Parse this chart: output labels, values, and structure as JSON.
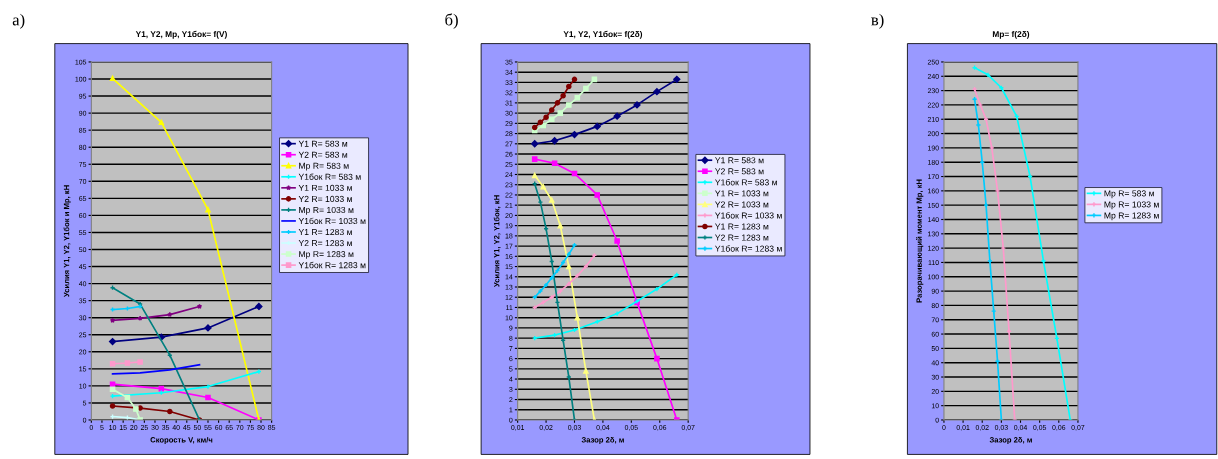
{
  "chart_data": [
    {
      "type": "line",
      "title": "Y1, Y2, Mр, Y1бок= f(V)",
      "xlabel": "Скорость V, км/ч",
      "ylabel": "Усилия Y1, Y2, Y1бок и Mр, кН",
      "annotations": [
        "а)"
      ],
      "xlim": [
        0,
        85
      ],
      "xticks": [
        0,
        5,
        10,
        15,
        20,
        25,
        30,
        35,
        40,
        45,
        50,
        55,
        60,
        65,
        70,
        75,
        80,
        85
      ],
      "ylim": [
        0,
        105
      ],
      "yticks": [
        0,
        5,
        10,
        15,
        20,
        25,
        30,
        35,
        40,
        45,
        50,
        55,
        60,
        65,
        70,
        75,
        80,
        85,
        90,
        95,
        100,
        105
      ],
      "grid": "y",
      "legend": "right",
      "series": [
        {
          "name": "Y1 R= 583 м",
          "color": "#000080",
          "marker": "diamond",
          "x": [
            10,
            33,
            55,
            79
          ],
          "values": [
            23,
            24.3,
            27,
            33.3
          ]
        },
        {
          "name": "Y2 R= 583 м",
          "color": "#ff00ff",
          "marker": "square",
          "x": [
            10,
            33,
            55,
            79
          ],
          "values": [
            10.5,
            9.2,
            6.6,
            0
          ]
        },
        {
          "name": "Mр R= 583 м",
          "color": "#ffff00",
          "marker": "triangle",
          "x": [
            10,
            33,
            55,
            79
          ],
          "values": [
            100.2,
            87.3,
            61.7,
            0
          ]
        },
        {
          "name": "Y1бок R= 583 м",
          "color": "#00ffff",
          "marker": "cross",
          "x": [
            10,
            33,
            55,
            79
          ],
          "values": [
            7,
            8,
            9.8,
            14.2
          ]
        },
        {
          "name": "Y1 R= 1033 м",
          "color": "#800080",
          "marker": "star",
          "x": [
            10,
            23,
            37,
            51
          ],
          "values": [
            29.2,
            29.8,
            30.9,
            33.3
          ]
        },
        {
          "name": "Y2 R= 1033 м",
          "color": "#800000",
          "marker": "circle",
          "x": [
            10,
            23,
            37,
            51
          ],
          "values": [
            4.1,
            3.5,
            2.5,
            0
          ]
        },
        {
          "name": "Mр R= 1033 м",
          "color": "#008080",
          "marker": "cross",
          "x": [
            10,
            23,
            37,
            51
          ],
          "values": [
            38.8,
            34,
            19,
            0
          ]
        },
        {
          "name": "Y1бок R= 1033 м",
          "color": "#0000ff",
          "marker": "none",
          "x": [
            10,
            23,
            37,
            51
          ],
          "values": [
            13.5,
            13.8,
            14.7,
            16.2
          ]
        },
        {
          "name": "Y1 R= 1283 м",
          "color": "#00ccff",
          "marker": "cross",
          "x": [
            10,
            17,
            23
          ],
          "values": [
            32.4,
            32.7,
            33.3
          ]
        },
        {
          "name": "Y2 R= 1283 м",
          "color": "#ccffff",
          "marker": "cross",
          "x": [
            10,
            17,
            23
          ],
          "values": [
            1,
            0.7,
            0
          ]
        },
        {
          "name": "Mр R= 1283 м",
          "color": "#ccffcc",
          "marker": "square",
          "x": [
            10,
            17,
            21,
            23
          ],
          "values": [
            9,
            6.6,
            3.2,
            0
          ]
        },
        {
          "name": "Y1бок R= 1283 м",
          "color": "#ff99cc",
          "marker": "square",
          "x": [
            10,
            17,
            23
          ],
          "values": [
            16.5,
            16.7,
            17
          ]
        }
      ]
    },
    {
      "type": "line",
      "title": "Y1, Y2, Y1бок= f(2δ)",
      "xlabel": "Зазор 2δ, м",
      "ylabel": "Усилия Y1, Y2, Y1бок, кН",
      "annotations": [
        "б)"
      ],
      "xlim": [
        0.01,
        0.07
      ],
      "xticks": [
        {
          "value": 0.01,
          "label": "0,01"
        },
        {
          "value": 0.02,
          "label": "0,02"
        },
        {
          "value": 0.03,
          "label": "0,03"
        },
        {
          "value": 0.04,
          "label": "0,04"
        },
        {
          "value": 0.05,
          "label": "0,05"
        },
        {
          "value": 0.06,
          "label": "0,06"
        },
        {
          "value": 0.07,
          "label": "0,07"
        }
      ],
      "ylim": [
        0,
        35
      ],
      "yticks": [
        0,
        1,
        2,
        3,
        4,
        5,
        6,
        7,
        8,
        9,
        10,
        11,
        12,
        13,
        14,
        15,
        16,
        17,
        18,
        19,
        20,
        21,
        22,
        23,
        24,
        25,
        26,
        27,
        28,
        29,
        30,
        31,
        32,
        33,
        34,
        35
      ],
      "grid": "y",
      "legend": "right",
      "series": [
        {
          "name": "Y1 R= 583 м",
          "color": "#000080",
          "marker": "diamond",
          "x": [
            0.016,
            0.023,
            0.03,
            0.038,
            0.045,
            0.052,
            0.059,
            0.066
          ],
          "values": [
            27,
            27.3,
            27.9,
            28.7,
            29.7,
            30.8,
            32.1,
            33.3
          ]
        },
        {
          "name": "Y2 R= 583 м",
          "color": "#ff00ff",
          "marker": "square",
          "x": [
            0.016,
            0.023,
            0.03,
            0.038,
            0.045,
            0.052,
            0.059,
            0.066
          ],
          "values": [
            25.5,
            25.1,
            24.1,
            22,
            17.5,
            11.5,
            6,
            0
          ]
        },
        {
          "name": "Y1бок R= 583 м",
          "color": "#00ffff",
          "marker": "cross",
          "x": [
            0.016,
            0.023,
            0.03,
            0.038,
            0.045,
            0.052,
            0.059,
            0.066
          ],
          "values": [
            8,
            8.3,
            8.8,
            9.6,
            10.4,
            11.6,
            12.8,
            14.2
          ]
        },
        {
          "name": "Y1 R= 1033 м",
          "color": "#ccffcc",
          "marker": "square",
          "x": [
            0.016,
            0.019,
            0.022,
            0.025,
            0.028,
            0.031,
            0.034,
            0.037
          ],
          "values": [
            28.3,
            28.8,
            29.4,
            30,
            30.8,
            31.5,
            32.4,
            33.3
          ]
        },
        {
          "name": "Y2 R= 1033 м",
          "color": "#ffff80",
          "marker": "triangle",
          "x": [
            0.016,
            0.019,
            0.022,
            0.025,
            0.028,
            0.031,
            0.034,
            0.037
          ],
          "values": [
            23.9,
            22.8,
            21.5,
            19,
            15,
            10,
            4.8,
            0
          ]
        },
        {
          "name": "Y1бок R= 1033 м",
          "color": "#ff99cc",
          "marker": "cross",
          "x": [
            0.016,
            0.019,
            0.022,
            0.025,
            0.028,
            0.031,
            0.034,
            0.037
          ],
          "values": [
            11,
            11.5,
            12,
            12.6,
            13.3,
            14.1,
            15,
            16.1
          ]
        },
        {
          "name": "Y1 R= 1283 м",
          "color": "#800000",
          "marker": "circle",
          "x": [
            0.016,
            0.018,
            0.02,
            0.022,
            0.024,
            0.026,
            0.028,
            0.03
          ],
          "values": [
            28.6,
            29.1,
            29.6,
            30.3,
            31,
            31.7,
            32.6,
            33.3
          ]
        },
        {
          "name": "Y2 R= 1283 м",
          "color": "#008080",
          "marker": "cross",
          "x": [
            0.016,
            0.018,
            0.02,
            0.022,
            0.024,
            0.026,
            0.028,
            0.03
          ],
          "values": [
            23.1,
            21.3,
            18.7,
            15.5,
            11.5,
            7.8,
            4.2,
            0
          ]
        },
        {
          "name": "Y1бок R= 1283 м",
          "color": "#00ccff",
          "marker": "cross",
          "x": [
            0.016,
            0.018,
            0.02,
            0.022,
            0.024,
            0.026,
            0.028,
            0.03
          ],
          "values": [
            12,
            12.6,
            13.2,
            13.9,
            14.6,
            15.4,
            16.2,
            17.1
          ]
        }
      ]
    },
    {
      "type": "line",
      "title": "Mр= f(2δ)",
      "xlabel": "Зазор 2δ, м",
      "ylabel": "Разорачивающий момент Mр, кН",
      "annotations": [
        "в)"
      ],
      "xlim": [
        0,
        0.07
      ],
      "xticks": [
        0,
        {
          "value": 0.01,
          "label": "0,01"
        },
        {
          "value": 0.02,
          "label": "0,02"
        },
        {
          "value": 0.03,
          "label": "0,03"
        },
        {
          "value": 0.04,
          "label": "0,04"
        },
        {
          "value": 0.05,
          "label": "0,05"
        },
        {
          "value": 0.06,
          "label": "0,06"
        },
        {
          "value": 0.07,
          "label": "0,07"
        }
      ],
      "ylim": [
        0,
        250
      ],
      "yticks": [
        0,
        10,
        20,
        30,
        40,
        50,
        60,
        70,
        80,
        90,
        100,
        110,
        120,
        130,
        140,
        150,
        160,
        170,
        180,
        190,
        200,
        210,
        220,
        230,
        240,
        250
      ],
      "grid": "y",
      "legend": "right",
      "series": [
        {
          "name": "Mр R= 583 м",
          "color": "#00ffff",
          "marker": "cross",
          "x": [
            0.016,
            0.023,
            0.03,
            0.038,
            0.045,
            0.052,
            0.059,
            0.066
          ],
          "values": [
            246,
            241,
            232,
            212,
            170,
            111,
            57,
            0
          ]
        },
        {
          "name": "Mр R= 1033 м",
          "color": "#ff99cc",
          "marker": "cross",
          "x": [
            0.016,
            0.019,
            0.022,
            0.025,
            0.028,
            0.031,
            0.034,
            0.037
          ],
          "values": [
            231,
            220,
            210,
            190,
            160,
            120,
            62,
            0
          ]
        },
        {
          "name": "Mр R= 1283 м",
          "color": "#00ccff",
          "marker": "cross",
          "x": [
            0.016,
            0.018,
            0.02,
            0.022,
            0.024,
            0.026,
            0.028,
            0.03
          ],
          "values": [
            224,
            206,
            180,
            150,
            111,
            76,
            41,
            0
          ]
        }
      ]
    }
  ]
}
